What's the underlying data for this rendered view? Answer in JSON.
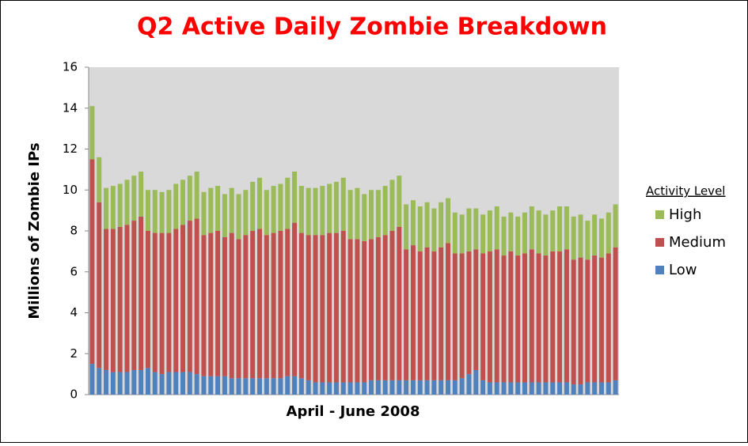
{
  "chart_data": {
    "type": "stacked_bar",
    "title": "Q2 Active Daily Zombie Breakdown",
    "x_label": "April - June 2008",
    "y_label": "Millions of Zombie IPs",
    "legend_title": "Activity Level",
    "legend_position": "right",
    "grid": false,
    "ylim": [
      0,
      16
    ],
    "yticks": [
      0,
      2,
      4,
      6,
      8,
      10,
      12,
      14,
      16
    ],
    "categories": [
      null,
      null,
      null,
      null,
      null,
      null,
      null,
      null,
      null,
      null,
      null,
      null,
      null,
      null,
      null,
      null,
      null,
      null,
      null,
      null,
      null,
      null,
      null,
      null,
      null,
      null,
      null,
      null,
      null,
      null,
      null,
      null,
      null,
      null,
      null,
      null,
      null,
      null,
      null,
      null,
      null,
      null,
      null,
      null,
      null,
      null,
      null,
      null,
      null,
      null,
      null,
      null,
      null,
      null,
      null,
      null,
      null,
      null,
      null,
      null,
      null,
      null,
      null,
      null,
      null,
      null,
      null,
      null,
      null,
      null,
      null,
      null,
      null,
      null,
      null,
      null
    ],
    "series": [
      {
        "name": "Low",
        "color": "#4f81bd",
        "values": [
          1.5,
          1.3,
          1.2,
          1.1,
          1.1,
          1.1,
          1.2,
          1.2,
          1.3,
          1.1,
          1.0,
          1.1,
          1.1,
          1.1,
          1.1,
          1.0,
          0.9,
          0.9,
          0.9,
          0.9,
          0.8,
          0.8,
          0.8,
          0.8,
          0.8,
          0.8,
          0.8,
          0.8,
          0.9,
          0.9,
          0.8,
          0.7,
          0.6,
          0.6,
          0.6,
          0.6,
          0.6,
          0.6,
          0.6,
          0.6,
          0.7,
          0.7,
          0.7,
          0.7,
          0.7,
          0.7,
          0.7,
          0.7,
          0.7,
          0.7,
          0.7,
          0.7,
          0.7,
          0.8,
          1.0,
          1.2,
          0.7,
          0.6,
          0.6,
          0.6,
          0.6,
          0.6,
          0.6,
          0.6,
          0.6,
          0.6,
          0.6,
          0.6,
          0.6,
          0.5,
          0.5,
          0.6,
          0.6,
          0.6,
          0.6,
          0.7
        ]
      },
      {
        "name": "Medium",
        "color": "#c0504d",
        "values": [
          10.0,
          8.1,
          6.9,
          7.0,
          7.1,
          7.2,
          7.3,
          7.5,
          6.7,
          6.8,
          6.9,
          6.8,
          7.0,
          7.2,
          7.4,
          7.6,
          6.9,
          7.0,
          7.1,
          6.8,
          7.1,
          6.8,
          7.0,
          7.2,
          7.3,
          7.0,
          7.1,
          7.2,
          7.2,
          7.5,
          7.1,
          7.1,
          7.2,
          7.2,
          7.3,
          7.3,
          7.4,
          7.0,
          7.0,
          6.9,
          6.9,
          7.0,
          7.1,
          7.3,
          7.5,
          6.4,
          6.6,
          6.3,
          6.5,
          6.3,
          6.5,
          6.7,
          6.2,
          6.1,
          6.0,
          5.9,
          6.2,
          6.4,
          6.5,
          6.2,
          6.4,
          6.2,
          6.3,
          6.5,
          6.3,
          6.2,
          6.4,
          6.4,
          6.5,
          6.1,
          6.2,
          6.0,
          6.2,
          6.1,
          6.3,
          6.5
        ]
      },
      {
        "name": "High",
        "color": "#9bbb59",
        "values": [
          2.6,
          2.2,
          2.0,
          2.1,
          2.1,
          2.2,
          2.2,
          2.2,
          2.0,
          2.1,
          2.0,
          2.1,
          2.2,
          2.2,
          2.2,
          2.3,
          2.1,
          2.2,
          2.2,
          2.1,
          2.2,
          2.2,
          2.2,
          2.4,
          2.5,
          2.2,
          2.3,
          2.3,
          2.5,
          2.5,
          2.3,
          2.3,
          2.3,
          2.4,
          2.4,
          2.5,
          2.6,
          2.4,
          2.5,
          2.3,
          2.4,
          2.3,
          2.4,
          2.5,
          2.5,
          2.2,
          2.2,
          2.2,
          2.2,
          2.1,
          2.2,
          2.2,
          2.0,
          1.9,
          2.1,
          2.0,
          1.9,
          2.0,
          2.1,
          1.9,
          1.9,
          1.9,
          2.0,
          2.1,
          2.1,
          2.0,
          2.0,
          2.2,
          2.1,
          2.1,
          2.1,
          1.9,
          2.0,
          1.9,
          2.0,
          2.1
        ]
      }
    ]
  }
}
